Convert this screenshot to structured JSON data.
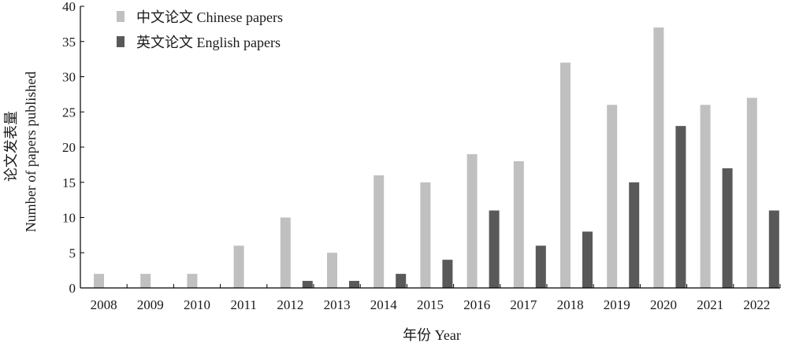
{
  "chart_data": {
    "type": "bar",
    "categories": [
      "2008",
      "2009",
      "2010",
      "2011",
      "2012",
      "2013",
      "2014",
      "2015",
      "2016",
      "2017",
      "2018",
      "2019",
      "2020",
      "2021",
      "2022"
    ],
    "series": [
      {
        "name": "中文论文 Chinese papers",
        "values": [
          2,
          2,
          2,
          6,
          10,
          5,
          16,
          15,
          19,
          18,
          32,
          26,
          37,
          26,
          27
        ],
        "color": "#c0c0c0"
      },
      {
        "name": "英文论文 English papers",
        "values": [
          0,
          0,
          0,
          0,
          1,
          1,
          2,
          4,
          11,
          6,
          8,
          15,
          23,
          17,
          11
        ],
        "color": "#595959"
      }
    ],
    "xlabel": "年份 Year",
    "ylabel_line1": "论文发表量",
    "ylabel_line2": "Number of papers published",
    "ylim": [
      0,
      40
    ],
    "yticks": [
      0,
      5,
      10,
      15,
      20,
      25,
      30,
      35,
      40
    ],
    "legend_position": "top-left",
    "grid": false
  }
}
